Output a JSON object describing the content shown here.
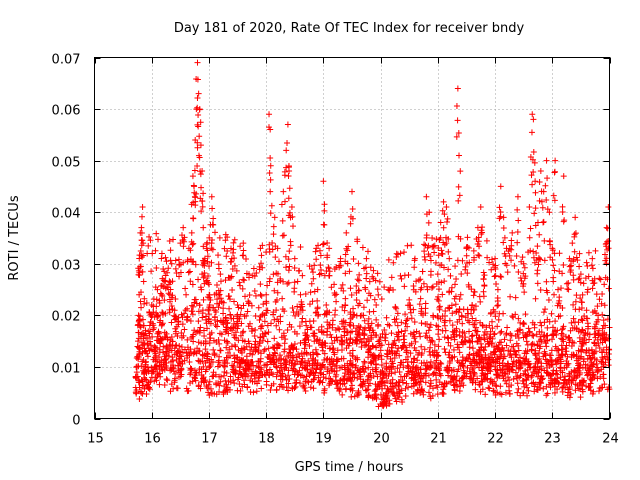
{
  "chart_data": {
    "type": "scatter",
    "title": "Day 181 of 2020, Rate Of TEC Index for receiver bndy",
    "xlabel": "GPS time / hours",
    "ylabel": "ROTI / TECUs",
    "xlim": [
      15,
      24
    ],
    "ylim": [
      0,
      0.07
    ],
    "xticks": [
      15,
      16,
      17,
      18,
      19,
      20,
      21,
      22,
      23,
      24
    ],
    "xtick_labels": [
      "15",
      "16",
      "17",
      "18",
      "19",
      "20",
      "21",
      "22",
      "23",
      "24"
    ],
    "yticks": [
      0,
      0.01,
      0.02,
      0.03,
      0.04,
      0.05,
      0.06,
      0.07
    ],
    "ytick_labels": [
      "0",
      "0.01",
      "0.02",
      "0.03",
      "0.04",
      "0.05",
      "0.06",
      "0.07"
    ],
    "grid": true,
    "marker": "plus",
    "color": "#ff0000",
    "series": [
      {
        "name": "ROTI",
        "points": [
          [
            15.72,
            0.006
          ],
          [
            15.74,
            0.009
          ],
          [
            15.75,
            0.012
          ],
          [
            15.76,
            0.015
          ],
          [
            15.77,
            0.02
          ],
          [
            15.78,
            0.024
          ],
          [
            15.8,
            0.036
          ],
          [
            15.82,
            0.037
          ],
          [
            15.84,
            0.041
          ],
          [
            15.85,
            0.034
          ],
          [
            15.86,
            0.018
          ],
          [
            15.9,
            0.011
          ],
          [
            15.95,
            0.007
          ],
          [
            16.0,
            0.022
          ],
          [
            16.05,
            0.014
          ],
          [
            16.1,
            0.025
          ],
          [
            16.15,
            0.019
          ],
          [
            16.2,
            0.029
          ],
          [
            16.25,
            0.013
          ],
          [
            16.3,
            0.026
          ],
          [
            16.35,
            0.03
          ],
          [
            16.4,
            0.021
          ],
          [
            16.45,
            0.016
          ],
          [
            16.5,
            0.034
          ],
          [
            16.55,
            0.037
          ],
          [
            16.6,
            0.024
          ],
          [
            16.65,
            0.033
          ],
          [
            16.7,
            0.036
          ],
          [
            16.72,
            0.047
          ],
          [
            16.74,
            0.045
          ],
          [
            16.76,
            0.054
          ],
          [
            16.78,
            0.06
          ],
          [
            16.8,
            0.069
          ],
          [
            16.82,
            0.063
          ],
          [
            16.84,
            0.06
          ],
          [
            16.86,
            0.053
          ],
          [
            16.88,
            0.048
          ],
          [
            16.9,
            0.037
          ],
          [
            16.93,
            0.031
          ],
          [
            16.96,
            0.033
          ],
          [
            17.0,
            0.026
          ],
          [
            17.05,
            0.043
          ],
          [
            17.1,
            0.024
          ],
          [
            17.2,
            0.028
          ],
          [
            17.3,
            0.019
          ],
          [
            17.4,
            0.031
          ],
          [
            17.5,
            0.022
          ],
          [
            17.6,
            0.034
          ],
          [
            17.7,
            0.028
          ],
          [
            17.8,
            0.016
          ],
          [
            17.9,
            0.033
          ],
          [
            18.0,
            0.024
          ],
          [
            18.05,
            0.059
          ],
          [
            18.08,
            0.049
          ],
          [
            18.15,
            0.039
          ],
          [
            18.2,
            0.033
          ],
          [
            18.3,
            0.044
          ],
          [
            18.35,
            0.052
          ],
          [
            18.38,
            0.057
          ],
          [
            18.4,
            0.048
          ],
          [
            18.45,
            0.041
          ],
          [
            18.5,
            0.031
          ],
          [
            18.6,
            0.024
          ],
          [
            18.7,
            0.018
          ],
          [
            18.8,
            0.029
          ],
          [
            18.9,
            0.025
          ],
          [
            19.0,
            0.046
          ],
          [
            19.05,
            0.022
          ],
          [
            19.1,
            0.033
          ],
          [
            19.2,
            0.029
          ],
          [
            19.3,
            0.031
          ],
          [
            19.4,
            0.036
          ],
          [
            19.5,
            0.044
          ],
          [
            19.6,
            0.027
          ],
          [
            19.7,
            0.02
          ],
          [
            19.8,
            0.015
          ],
          [
            19.9,
            0.012
          ],
          [
            20.0,
            0.009
          ],
          [
            20.05,
            0.003
          ],
          [
            20.1,
            0.005
          ],
          [
            20.2,
            0.011
          ],
          [
            20.3,
            0.018
          ],
          [
            20.4,
            0.016
          ],
          [
            20.5,
            0.023
          ],
          [
            20.6,
            0.031
          ],
          [
            20.7,
            0.025
          ],
          [
            20.8,
            0.043
          ],
          [
            20.85,
            0.04
          ],
          [
            20.9,
            0.035
          ],
          [
            21.0,
            0.028
          ],
          [
            21.05,
            0.038
          ],
          [
            21.1,
            0.042
          ],
          [
            21.15,
            0.041
          ],
          [
            21.2,
            0.031
          ],
          [
            21.3,
            0.026
          ],
          [
            21.35,
            0.064
          ],
          [
            21.37,
            0.051
          ],
          [
            21.4,
            0.024
          ],
          [
            21.5,
            0.033
          ],
          [
            21.6,
            0.022
          ],
          [
            21.7,
            0.037
          ],
          [
            21.75,
            0.041
          ],
          [
            21.8,
            0.027
          ],
          [
            21.9,
            0.018
          ],
          [
            22.0,
            0.031
          ],
          [
            22.05,
            0.025
          ],
          [
            22.1,
            0.045
          ],
          [
            22.15,
            0.039
          ],
          [
            22.2,
            0.033
          ],
          [
            22.3,
            0.036
          ],
          [
            22.4,
            0.043
          ],
          [
            22.5,
            0.03
          ],
          [
            22.6,
            0.041
          ],
          [
            22.65,
            0.059
          ],
          [
            22.67,
            0.058
          ],
          [
            22.7,
            0.046
          ],
          [
            22.75,
            0.038
          ],
          [
            22.8,
            0.048
          ],
          [
            22.85,
            0.044
          ],
          [
            22.9,
            0.05
          ],
          [
            22.95,
            0.04
          ],
          [
            23.0,
            0.033
          ],
          [
            23.05,
            0.05
          ],
          [
            23.1,
            0.025
          ],
          [
            23.2,
            0.047
          ],
          [
            23.3,
            0.031
          ],
          [
            23.35,
            0.034
          ],
          [
            23.4,
            0.039
          ],
          [
            23.5,
            0.028
          ],
          [
            23.6,
            0.021
          ],
          [
            23.7,
            0.031
          ],
          [
            23.8,
            0.02
          ],
          [
            23.9,
            0.018
          ],
          [
            23.95,
            0.037
          ],
          [
            23.98,
            0.041
          ]
        ]
      }
    ],
    "dense_band": [
      [
        15.75,
        0.003,
        0.02
      ],
      [
        16.0,
        0.005,
        0.024
      ],
      [
        16.5,
        0.005,
        0.024
      ],
      [
        17.0,
        0.004,
        0.026
      ],
      [
        17.5,
        0.005,
        0.024
      ],
      [
        18.0,
        0.005,
        0.022
      ],
      [
        18.5,
        0.005,
        0.023
      ],
      [
        19.0,
        0.005,
        0.022
      ],
      [
        19.5,
        0.004,
        0.024
      ],
      [
        20.0,
        0.002,
        0.018
      ],
      [
        20.5,
        0.003,
        0.022
      ],
      [
        21.0,
        0.004,
        0.023
      ],
      [
        21.5,
        0.005,
        0.024
      ],
      [
        22.0,
        0.004,
        0.022
      ],
      [
        22.5,
        0.004,
        0.022
      ],
      [
        23.0,
        0.004,
        0.021
      ],
      [
        23.5,
        0.004,
        0.021
      ],
      [
        24.0,
        0.005,
        0.022
      ]
    ]
  }
}
